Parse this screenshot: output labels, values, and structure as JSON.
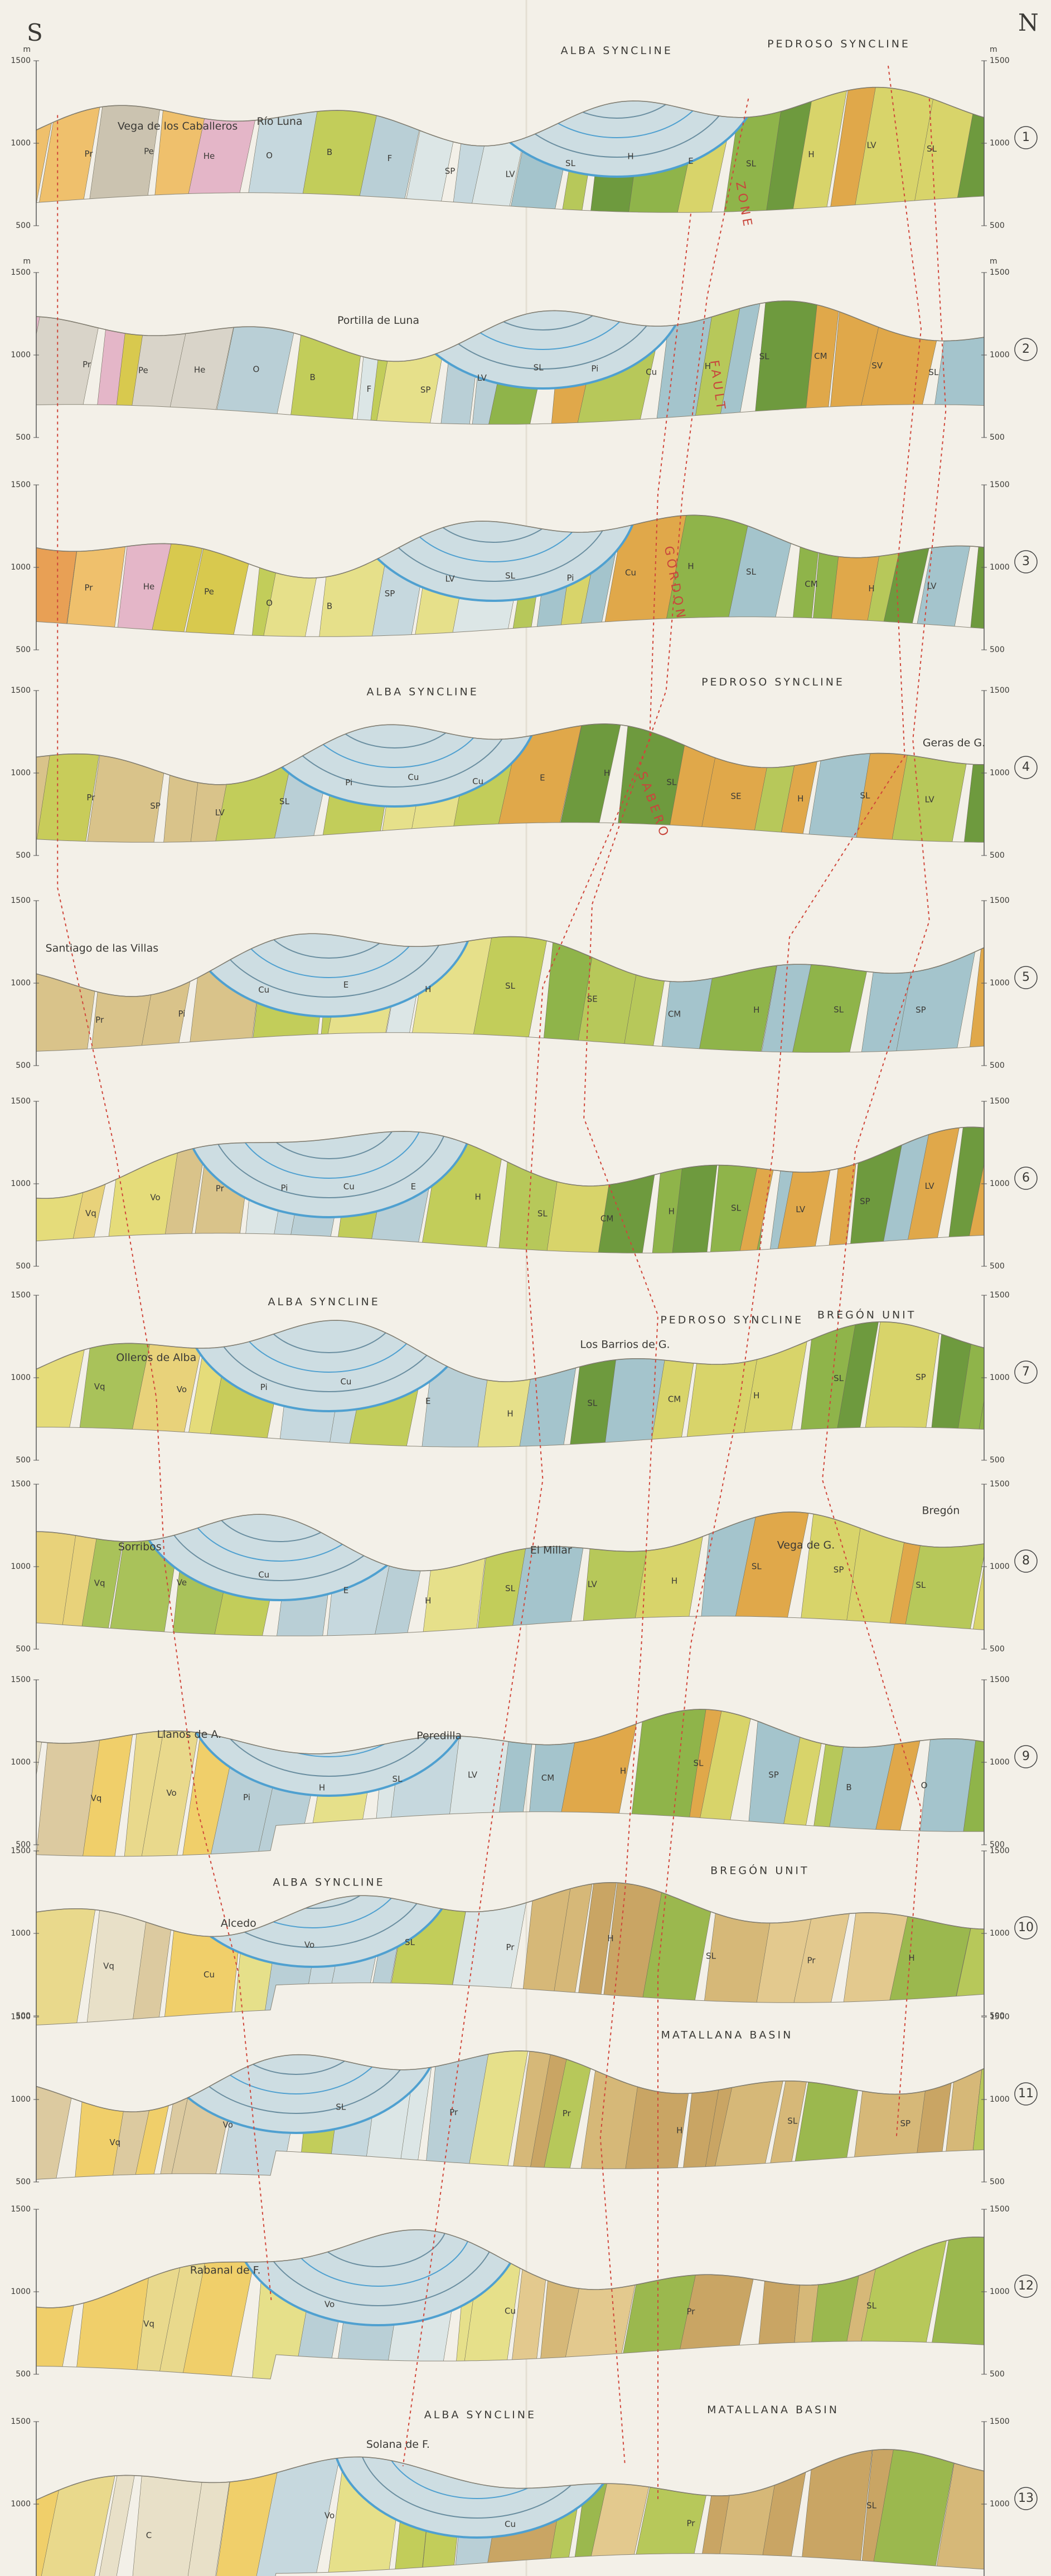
{
  "header": {
    "south": "S",
    "north": "N"
  },
  "scale": {
    "unit": "m",
    "levels": [
      "1500",
      "1000",
      "500"
    ]
  },
  "fault_zone": [
    "ZONE",
    "FAULT",
    "GORDON",
    "SABERO"
  ],
  "sections": [
    {
      "number": "1",
      "places": [
        "Vega de los Caballeros",
        "Río Luna"
      ],
      "structures": [
        "ALBA SYNCLINE",
        "PEDROSO SYNCLINE"
      ],
      "units": [
        "Pr",
        "Pe",
        "He",
        "O",
        "B",
        "F",
        "SP",
        "LV",
        "SL",
        "H",
        "E",
        "SL",
        "H",
        "LV",
        "SL"
      ]
    },
    {
      "number": "2",
      "places": [
        "Portilla de Luna"
      ],
      "structures": [],
      "units": [
        "Pr",
        "Pe",
        "He",
        "O",
        "B",
        "F",
        "SP",
        "LV",
        "SL",
        "Pi",
        "Cu",
        "H",
        "SL",
        "CM",
        "SV",
        "SL"
      ]
    },
    {
      "number": "3",
      "places": [],
      "structures": [],
      "units": [
        "Pr",
        "He",
        "Pe",
        "O",
        "B",
        "SP",
        "LV",
        "SL",
        "Pi",
        "Cu",
        "H",
        "SL",
        "CM",
        "H",
        "LV"
      ]
    },
    {
      "number": "4",
      "places": [
        "Geras de G."
      ],
      "structures": [
        "ALBA SYNCLINE",
        "PEDROSO SYNCLINE"
      ],
      "units": [
        "Pr",
        "SP",
        "LV",
        "SL",
        "Pi",
        "Cu",
        "Cu",
        "E",
        "H",
        "SL",
        "SE",
        "H",
        "SL",
        "LV"
      ]
    },
    {
      "number": "5",
      "places": [
        "Santiago de las Villas"
      ],
      "structures": [],
      "units": [
        "Pr",
        "Pi",
        "Cu",
        "E",
        "H",
        "SL",
        "SE",
        "CM",
        "H",
        "SL",
        "SP"
      ]
    },
    {
      "number": "6",
      "places": [],
      "structures": [],
      "units": [
        "Vq",
        "Vo",
        "Pr",
        "Pi",
        "Cu",
        "E",
        "H",
        "SL",
        "CM",
        "H",
        "SL",
        "LV",
        "SP",
        "LV"
      ]
    },
    {
      "number": "7",
      "places": [
        "Olleros de Alba",
        "Los Barrios de G."
      ],
      "structures": [
        "ALBA SYNCLINE",
        "PEDROSO SYNCLINE",
        "BREGÓN UNIT"
      ],
      "units": [
        "Vq",
        "Vo",
        "Pi",
        "Cu",
        "E",
        "H",
        "SL",
        "CM",
        "H",
        "SL",
        "SP"
      ]
    },
    {
      "number": "8",
      "places": [
        "Sorribos",
        "El Millar",
        "Vega de G.",
        "Bregón"
      ],
      "structures": [],
      "units": [
        "Vq",
        "Ve",
        "Cu",
        "E",
        "H",
        "SL",
        "LV",
        "H",
        "SL",
        "SP",
        "SL"
      ]
    },
    {
      "number": "9",
      "places": [
        "Llanos de A.",
        "Peredilla"
      ],
      "structures": [],
      "units": [
        "Vq",
        "Vo",
        "Pi",
        "H",
        "SL",
        "LV",
        "CM",
        "H",
        "SL",
        "SP",
        "B",
        "O"
      ]
    },
    {
      "number": "10",
      "places": [
        "Alcedo"
      ],
      "structures": [
        "ALBA SYNCLINE",
        "BREGÓN UNIT"
      ],
      "units": [
        "Vq",
        "Cu",
        "Vo",
        "SL",
        "Pr",
        "H",
        "SL",
        "Pr",
        "H"
      ]
    },
    {
      "number": "11",
      "places": [],
      "structures": [
        "MATALLANA BASIN"
      ],
      "units": [
        "Vq",
        "Vo",
        "SL",
        "Pr",
        "Pr",
        "H",
        "SL",
        "SP"
      ]
    },
    {
      "number": "12",
      "places": [
        "Rabanal de F."
      ],
      "structures": [],
      "units": [
        "Vq",
        "Vo",
        "Cu",
        "Pr",
        "SL"
      ]
    },
    {
      "number": "13",
      "places": [
        "Solana de F."
      ],
      "structures": [
        "ALBA SYNCLINE",
        "MATALLANA BASIN"
      ],
      "units": [
        "C",
        "Vo",
        "Cu",
        "Pr",
        "SL"
      ]
    }
  ]
}
